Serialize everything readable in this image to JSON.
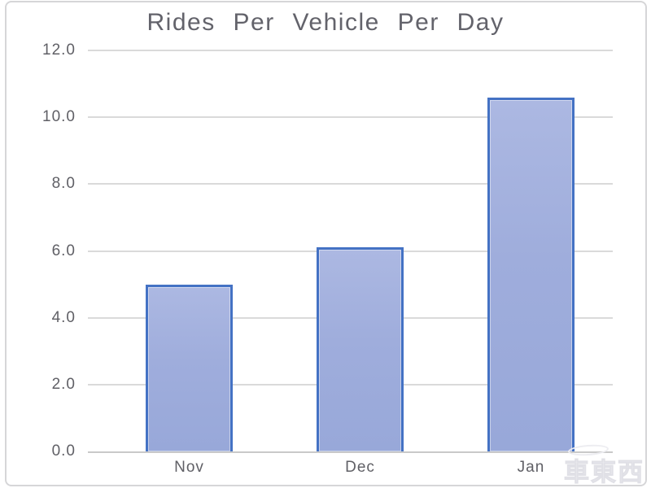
{
  "chart_data": {
    "type": "bar",
    "title": "Rides Per Vehicle Per Day",
    "categories": [
      "Nov",
      "Dec",
      "Jan"
    ],
    "values": [
      5.0,
      6.1,
      10.6
    ],
    "xlabel": "",
    "ylabel": "",
    "ylim": [
      0,
      12
    ],
    "ytick_step": 2,
    "ytick_labels": [
      "0.0",
      "2.0",
      "4.0",
      "6.0",
      "8.0",
      "10.0",
      "12.0"
    ],
    "grid": true,
    "legend": false,
    "colors": {
      "bar_fill": "#9faddc",
      "bar_border": "#4472c4",
      "gridline": "#dadada",
      "axis_line": "#c9c9c9",
      "title_text": "#63636b",
      "tick_text": "#606066",
      "frame_border": "#d6d6d8"
    }
  },
  "watermark": {
    "text": "車東西"
  }
}
